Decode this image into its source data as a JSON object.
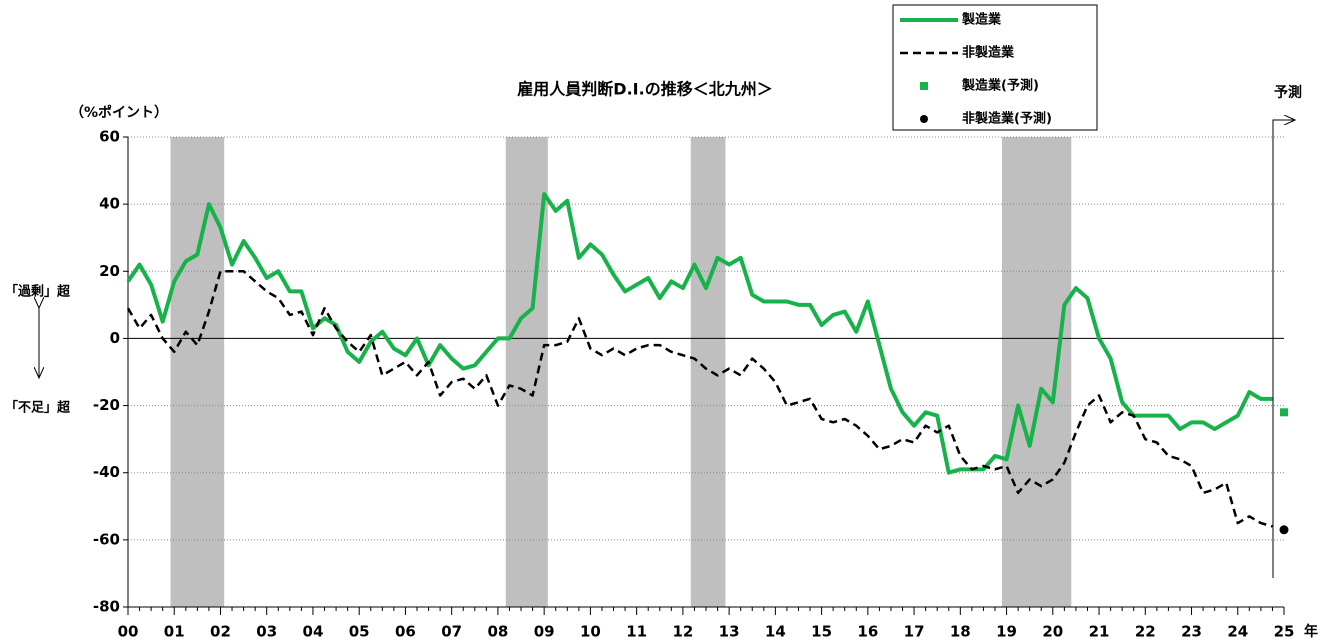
{
  "chart_data": {
    "type": "line",
    "title": "雇用人員判断D.I.の推移＜北九州＞",
    "y_label": "（%ポイント）",
    "upper_note": "「過剰」超",
    "lower_note": "「不足」超",
    "forecast_label": "予測",
    "x_unit": "年",
    "xlim": [
      2000,
      2025
    ],
    "xticks": [
      {
        "value": 2000,
        "label": "00"
      },
      {
        "value": 2001,
        "label": "01"
      },
      {
        "value": 2002,
        "label": "02"
      },
      {
        "value": 2003,
        "label": "03"
      },
      {
        "value": 2004,
        "label": "04"
      },
      {
        "value": 2005,
        "label": "05"
      },
      {
        "value": 2006,
        "label": "06"
      },
      {
        "value": 2007,
        "label": "07"
      },
      {
        "value": 2008,
        "label": "08"
      },
      {
        "value": 2009,
        "label": "09"
      },
      {
        "value": 2010,
        "label": "10"
      },
      {
        "value": 2011,
        "label": "11"
      },
      {
        "value": 2012,
        "label": "12"
      },
      {
        "value": 2013,
        "label": "13"
      },
      {
        "value": 2014,
        "label": "14"
      },
      {
        "value": 2015,
        "label": "15"
      },
      {
        "value": 2016,
        "label": "16"
      },
      {
        "value": 2017,
        "label": "17"
      },
      {
        "value": 2018,
        "label": "18"
      },
      {
        "value": 2019,
        "label": "19"
      },
      {
        "value": 2020,
        "label": "20"
      },
      {
        "value": 2021,
        "label": "21"
      },
      {
        "value": 2022,
        "label": "22"
      },
      {
        "value": 2023,
        "label": "23"
      },
      {
        "value": 2024,
        "label": "24"
      },
      {
        "value": 2025,
        "label": "25"
      }
    ],
    "ylim": [
      -80,
      60
    ],
    "yticks": [
      60,
      40,
      20,
      0,
      -20,
      -40,
      -60,
      -80
    ],
    "grid": true,
    "shaded_periods": [
      [
        2000.92,
        2002.08
      ],
      [
        2008.17,
        2009.08
      ],
      [
        2012.17,
        2012.92
      ],
      [
        2018.9,
        2020.4
      ]
    ],
    "x": [
      2000,
      2000.25,
      2000.5,
      2000.75,
      2001,
      2001.25,
      2001.5,
      2001.75,
      2002,
      2002.25,
      2002.5,
      2002.75,
      2003,
      2003.25,
      2003.5,
      2003.75,
      2004,
      2004.25,
      2004.5,
      2004.75,
      2005,
      2005.25,
      2005.5,
      2005.75,
      2006,
      2006.25,
      2006.5,
      2006.75,
      2007,
      2007.25,
      2007.5,
      2007.75,
      2008,
      2008.25,
      2008.5,
      2008.75,
      2009,
      2009.25,
      2009.5,
      2009.75,
      2010,
      2010.25,
      2010.5,
      2010.75,
      2011,
      2011.25,
      2011.5,
      2011.75,
      2012,
      2012.25,
      2012.5,
      2012.75,
      2013,
      2013.25,
      2013.5,
      2013.75,
      2014,
      2014.25,
      2014.5,
      2014.75,
      2015,
      2015.25,
      2015.5,
      2015.75,
      2016,
      2016.25,
      2016.5,
      2016.75,
      2017,
      2017.25,
      2017.5,
      2017.75,
      2018,
      2018.25,
      2018.5,
      2018.75,
      2019,
      2019.25,
      2019.5,
      2019.75,
      2020,
      2020.25,
      2020.5,
      2020.75,
      2021,
      2021.25,
      2021.5,
      2021.75,
      2022,
      2022.25,
      2022.5,
      2022.75,
      2023,
      2023.25,
      2023.5,
      2023.75,
      2024,
      2024.25,
      2024.5,
      2024.75
    ],
    "series": [
      {
        "name": "製造業",
        "color": "#17b34a",
        "style": "solid",
        "values": [
          17,
          22,
          16,
          5,
          17,
          23,
          25,
          40,
          33,
          22,
          29,
          24,
          18,
          20,
          14,
          14,
          3,
          6,
          4,
          -4,
          -7,
          -1,
          2,
          -3,
          -5,
          0,
          -8,
          -2,
          -6,
          -9,
          -8,
          -4,
          0,
          0,
          6,
          9,
          43,
          38,
          41,
          24,
          28,
          25,
          19,
          14,
          16,
          18,
          12,
          17,
          15,
          22,
          15,
          24,
          22,
          24,
          13,
          11,
          11,
          11,
          10,
          10,
          4,
          7,
          8,
          2,
          11,
          -2,
          -15,
          -22,
          -26,
          -22,
          -23,
          -40,
          -39,
          -39,
          -39,
          -35,
          -36,
          -20,
          -32,
          -15,
          -19,
          10,
          15,
          12,
          0,
          -6,
          -19,
          -23,
          -23,
          -23,
          -23,
          -27,
          -25,
          -25,
          -27,
          -25,
          -23,
          -16,
          -18,
          -18
        ]
      },
      {
        "name": "非製造業",
        "color": "#000000",
        "style": "dashed",
        "values": [
          9,
          3,
          7,
          0,
          -4,
          2,
          -2,
          8,
          20,
          20,
          20,
          17,
          14,
          12,
          7,
          8,
          1,
          9,
          3,
          -1,
          -4,
          1,
          -11,
          -9,
          -7,
          -11,
          -7,
          -17,
          -13,
          -12,
          -15,
          -11,
          -20,
          -14,
          -15,
          -17,
          -2,
          -2,
          -1,
          6,
          -3,
          -5,
          -3,
          -5,
          -3,
          -2,
          -2,
          -4,
          -5,
          -6,
          -9,
          -11,
          -9,
          -11,
          -6,
          -9,
          -13,
          -20,
          -19,
          -18,
          -24,
          -25,
          -24,
          -26,
          -29,
          -33,
          -32,
          -30,
          -31,
          -26,
          -28,
          -26,
          -35,
          -39,
          -38,
          -39,
          -38,
          -46,
          -42,
          -44,
          -42,
          -37,
          -28,
          -20,
          -17,
          -25,
          -22,
          -23,
          -30,
          -31,
          -35,
          -36,
          -38,
          -46,
          -45,
          -43,
          -55,
          -53,
          -55,
          -56
        ]
      },
      {
        "name": "製造業(予測)",
        "color": "#17b34a",
        "marker": "square",
        "x": [
          2025
        ],
        "values": [
          -22
        ]
      },
      {
        "name": "非製造業(予測)",
        "color": "#000000",
        "marker": "circle",
        "x": [
          2025
        ],
        "values": [
          -57
        ]
      }
    ]
  }
}
